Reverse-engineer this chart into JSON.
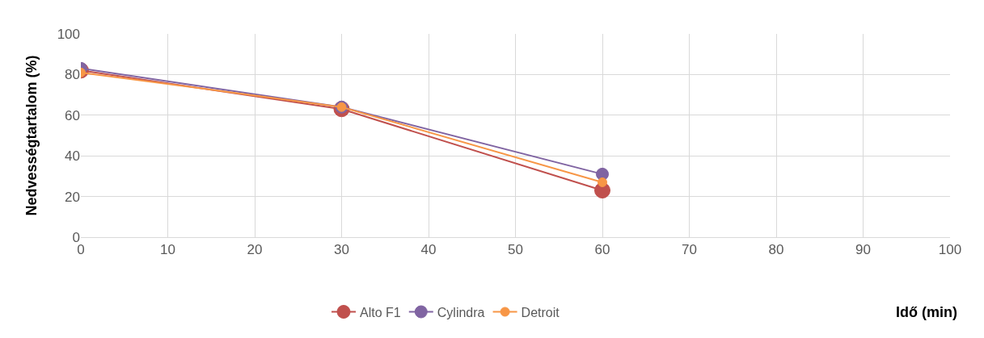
{
  "chart_data": {
    "type": "line",
    "xlabel": "Idő (min)",
    "ylabel": "Nedvességtartalom (%)",
    "x": [
      0,
      30,
      60
    ],
    "series": [
      {
        "name": "Alto F1",
        "color": "#c0504d",
        "values": [
          82,
          63,
          23
        ]
      },
      {
        "name": "Cylindra",
        "color": "#8064a2",
        "values": [
          83,
          64,
          31
        ]
      },
      {
        "name": "Detroit",
        "color": "#f79646",
        "values": [
          81,
          64,
          27
        ]
      }
    ],
    "xlim": [
      0,
      100
    ],
    "xticks": [
      0,
      10,
      20,
      30,
      40,
      50,
      60,
      70,
      80,
      90,
      100
    ],
    "ylim": [
      0,
      100
    ],
    "yticks": [
      0,
      20,
      40,
      60,
      80,
      100
    ],
    "grid": true,
    "legend": "bottom",
    "marker": "circle",
    "line_style": "solid"
  }
}
